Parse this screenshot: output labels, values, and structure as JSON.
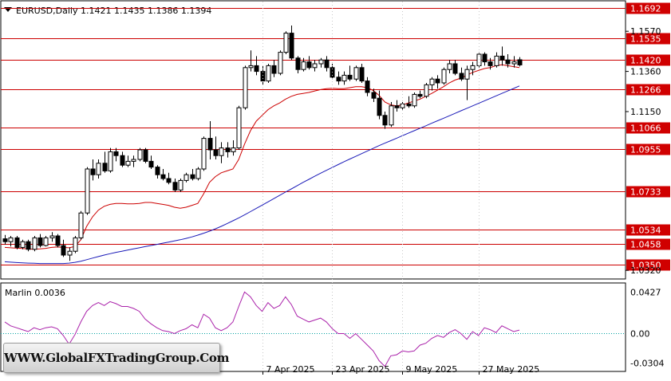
{
  "chart_data": [
    {
      "type": "candlestick",
      "symbol_header": "EURUSD,Daily  1.1421  1.1435  1.1386  1.1394",
      "ylim": [
        1.0275,
        1.1725
      ],
      "y_ticks": [
        "1.1570",
        "1.1360",
        "1.1150",
        "1.0320"
      ],
      "horizontal_levels": [
        {
          "value": 1.1692,
          "label": "1.1692"
        },
        {
          "value": 1.1535,
          "label": "1.1535"
        },
        {
          "value": 1.142,
          "label": "1.1420"
        },
        {
          "value": 1.1266,
          "label": "1.1266"
        },
        {
          "value": 1.1066,
          "label": "1.1066"
        },
        {
          "value": 1.0955,
          "label": "1.0955"
        },
        {
          "value": 1.0733,
          "label": "1.0733"
        },
        {
          "value": 1.0534,
          "label": "1.0534"
        },
        {
          "value": 1.0458,
          "label": "1.0458"
        },
        {
          "value": 1.035,
          "label": "1.0350"
        }
      ],
      "x_tick_labels": [
        {
          "label": "7 Apr 2025",
          "bar": 44
        },
        {
          "label": "23 Apr 2025",
          "bar": 56
        },
        {
          "label": "9 May 2025",
          "bar": 68
        },
        {
          "label": "27 May 2025",
          "bar": 81
        }
      ],
      "level_color": "#cc0000",
      "label_bg": "#d00000",
      "bull_color": "#ffffff",
      "bear_color": "#000000",
      "fast_ma_color": "#cc0000",
      "slow_ma_color": "#1a1ab8",
      "candles": [
        [
          1.0485,
          1.0505,
          1.0455,
          1.047
        ],
        [
          1.047,
          1.05,
          1.0445,
          1.049
        ],
        [
          1.049,
          1.05,
          1.043,
          1.044
        ],
        [
          1.044,
          1.048,
          1.043,
          1.047
        ],
        [
          1.047,
          1.048,
          1.042,
          1.043
        ],
        [
          1.043,
          1.05,
          1.042,
          1.049
        ],
        [
          1.049,
          1.051,
          1.044,
          1.045
        ],
        [
          1.045,
          1.05,
          1.0445,
          1.049
        ],
        [
          1.049,
          1.052,
          1.047,
          1.05
        ],
        [
          1.05,
          1.051,
          1.044,
          1.045
        ],
        [
          1.045,
          1.048,
          1.039,
          1.04
        ],
        [
          1.04,
          1.044,
          1.037,
          1.042
        ],
        [
          1.042,
          1.05,
          1.041,
          1.049
        ],
        [
          1.049,
          1.063,
          1.048,
          1.062
        ],
        [
          1.062,
          1.086,
          1.061,
          1.085
        ],
        [
          1.085,
          1.09,
          1.079,
          1.082
        ],
        [
          1.082,
          1.09,
          1.08,
          1.088
        ],
        [
          1.088,
          1.094,
          1.083,
          1.084
        ],
        [
          1.084,
          1.096,
          1.083,
          1.094
        ],
        [
          1.094,
          1.096,
          1.089,
          1.092
        ],
        [
          1.092,
          1.094,
          1.086,
          1.087
        ],
        [
          1.087,
          1.092,
          1.086,
          1.089
        ],
        [
          1.089,
          1.092,
          1.086,
          1.09
        ],
        [
          1.09,
          1.096,
          1.089,
          1.095
        ],
        [
          1.095,
          1.096,
          1.088,
          1.089
        ],
        [
          1.089,
          1.092,
          1.085,
          1.086
        ],
        [
          1.086,
          1.087,
          1.08,
          1.082
        ],
        [
          1.082,
          1.085,
          1.079,
          1.08
        ],
        [
          1.08,
          1.083,
          1.077,
          1.078
        ],
        [
          1.078,
          1.08,
          1.073,
          1.074
        ],
        [
          1.074,
          1.08,
          1.073,
          1.079
        ],
        [
          1.079,
          1.083,
          1.078,
          1.082
        ],
        [
          1.082,
          1.085,
          1.079,
          1.08
        ],
        [
          1.08,
          1.086,
          1.079,
          1.085
        ],
        [
          1.085,
          1.102,
          1.084,
          1.101
        ],
        [
          1.101,
          1.11,
          1.09,
          1.095
        ],
        [
          1.095,
          1.102,
          1.09,
          1.092
        ],
        [
          1.092,
          1.099,
          1.088,
          1.096
        ],
        [
          1.096,
          1.099,
          1.091,
          1.094
        ],
        [
          1.094,
          1.1,
          1.092,
          1.096
        ],
        [
          1.096,
          1.118,
          1.095,
          1.117
        ],
        [
          1.117,
          1.139,
          1.116,
          1.138
        ],
        [
          1.138,
          1.147,
          1.136,
          1.139
        ],
        [
          1.139,
          1.144,
          1.134,
          1.136
        ],
        [
          1.136,
          1.139,
          1.129,
          1.131
        ],
        [
          1.131,
          1.14,
          1.13,
          1.139
        ],
        [
          1.139,
          1.142,
          1.133,
          1.135
        ],
        [
          1.135,
          1.147,
          1.134,
          1.146
        ],
        [
          1.146,
          1.157,
          1.145,
          1.156
        ],
        [
          1.156,
          1.16,
          1.142,
          1.143
        ],
        [
          1.143,
          1.144,
          1.135,
          1.137
        ],
        [
          1.137,
          1.143,
          1.136,
          1.141
        ],
        [
          1.141,
          1.144,
          1.137,
          1.138
        ],
        [
          1.138,
          1.142,
          1.136,
          1.14
        ],
        [
          1.14,
          1.143,
          1.138,
          1.142
        ],
        [
          1.142,
          1.144,
          1.136,
          1.138
        ],
        [
          1.138,
          1.14,
          1.132,
          1.133
        ],
        [
          1.133,
          1.136,
          1.129,
          1.131
        ],
        [
          1.131,
          1.136,
          1.129,
          1.134
        ],
        [
          1.134,
          1.139,
          1.131,
          1.132
        ],
        [
          1.132,
          1.139,
          1.131,
          1.138
        ],
        [
          1.138,
          1.14,
          1.13,
          1.131
        ],
        [
          1.131,
          1.133,
          1.123,
          1.125
        ],
        [
          1.125,
          1.127,
          1.12,
          1.122
        ],
        [
          1.122,
          1.126,
          1.111,
          1.113
        ],
        [
          1.113,
          1.115,
          1.106,
          1.108
        ],
        [
          1.108,
          1.12,
          1.107,
          1.118
        ],
        [
          1.118,
          1.121,
          1.115,
          1.117
        ],
        [
          1.117,
          1.12,
          1.116,
          1.119
        ],
        [
          1.119,
          1.123,
          1.117,
          1.118
        ],
        [
          1.118,
          1.125,
          1.117,
          1.124
        ],
        [
          1.124,
          1.126,
          1.122,
          1.123
        ],
        [
          1.123,
          1.13,
          1.122,
          1.129
        ],
        [
          1.129,
          1.133,
          1.126,
          1.132
        ],
        [
          1.132,
          1.134,
          1.127,
          1.13
        ],
        [
          1.13,
          1.138,
          1.129,
          1.137
        ],
        [
          1.137,
          1.142,
          1.135,
          1.14
        ],
        [
          1.14,
          1.142,
          1.134,
          1.135
        ],
        [
          1.135,
          1.138,
          1.131,
          1.132
        ],
        [
          1.132,
          1.139,
          1.121,
          1.137
        ],
        [
          1.137,
          1.141,
          1.134,
          1.139
        ],
        [
          1.139,
          1.146,
          1.138,
          1.145
        ],
        [
          1.145,
          1.146,
          1.139,
          1.141
        ],
        [
          1.141,
          1.143,
          1.137,
          1.139
        ],
        [
          1.139,
          1.146,
          1.138,
          1.144
        ],
        [
          1.144,
          1.149,
          1.139,
          1.142
        ],
        [
          1.142,
          1.145,
          1.138,
          1.14
        ],
        [
          1.14,
          1.144,
          1.138,
          1.141
        ],
        [
          1.1421,
          1.1435,
          1.1386,
          1.1394
        ]
      ],
      "fast_ma": [
        1.044,
        1.0438,
        1.0436,
        1.0434,
        1.0432,
        1.043,
        1.0432,
        1.0435,
        1.044,
        1.0442,
        1.044,
        1.0438,
        1.0445,
        1.048,
        1.055,
        1.06,
        1.0635,
        1.0655,
        1.0665,
        1.067,
        1.067,
        1.0668,
        1.0668,
        1.067,
        1.0675,
        1.0675,
        1.067,
        1.0665,
        1.066,
        1.065,
        1.0645,
        1.065,
        1.066,
        1.067,
        1.072,
        1.078,
        1.081,
        1.083,
        1.084,
        1.085,
        1.09,
        1.098,
        1.105,
        1.11,
        1.113,
        1.116,
        1.118,
        1.1195,
        1.1215,
        1.123,
        1.124,
        1.1245,
        1.125,
        1.1258,
        1.1265,
        1.127,
        1.1272,
        1.127,
        1.127,
        1.1275,
        1.128,
        1.128,
        1.1275,
        1.126,
        1.1235,
        1.12,
        1.1185,
        1.118,
        1.1185,
        1.1195,
        1.1205,
        1.1215,
        1.123,
        1.1245,
        1.1262,
        1.128,
        1.13,
        1.1315,
        1.1325,
        1.134,
        1.1355,
        1.1365,
        1.1375,
        1.138,
        1.139,
        1.1395,
        1.139,
        1.1385,
        1.138
      ],
      "slow_ma": [
        1.0365,
        1.0363,
        1.0361,
        1.0359,
        1.0358,
        1.0357,
        1.0356,
        1.0356,
        1.0356,
        1.0356,
        1.0356,
        1.0358,
        1.0362,
        1.0368,
        1.0376,
        1.0384,
        1.0392,
        1.04,
        1.0407,
        1.0414,
        1.042,
        1.0426,
        1.0432,
        1.0438,
        1.0444,
        1.045,
        1.0456,
        1.0462,
        1.0468,
        1.0474,
        1.048,
        1.0487,
        1.0495,
        1.0504,
        1.0514,
        1.0525,
        1.0537,
        1.055,
        1.0564,
        1.0579,
        1.0594,
        1.061,
        1.0627,
        1.0644,
        1.0661,
        1.0678,
        1.0695,
        1.0712,
        1.0729,
        1.0746,
        1.0763,
        1.078,
        1.0796,
        1.0812,
        1.0828,
        1.0843,
        1.0858,
        1.0873,
        1.0888,
        1.0902,
        1.0916,
        1.093,
        1.0944,
        1.0958,
        1.0972,
        1.0985,
        1.0998,
        1.1011,
        1.1024,
        1.1037,
        1.105,
        1.1063,
        1.1076,
        1.1089,
        1.1102,
        1.1115,
        1.1128,
        1.1141,
        1.1154,
        1.1167,
        1.118,
        1.1193,
        1.1206,
        1.1219,
        1.1232,
        1.1245,
        1.1258,
        1.1271,
        1.1284
      ]
    },
    {
      "type": "line",
      "indicator_label": "Marlin 0.0036",
      "series_color": "#aa22aa",
      "y_ticks": [
        "0.0427",
        "0.00",
        "-0.0304"
      ],
      "ylim": [
        -0.0392,
        0.0515
      ],
      "zero_line_color": "#00a0a0",
      "values": [
        0.012,
        0.008,
        0.006,
        0.004,
        0.002,
        0.006,
        0.004,
        0.006,
        0.007,
        0.005,
        -0.002,
        -0.011,
        -0.001,
        0.012,
        0.023,
        0.029,
        0.032,
        0.029,
        0.033,
        0.031,
        0.028,
        0.028,
        0.026,
        0.023,
        0.015,
        0.01,
        0.006,
        0.003,
        0.002,
        0.0,
        0.003,
        0.005,
        0.009,
        0.006,
        0.02,
        0.016,
        0.006,
        0.003,
        0.006,
        0.012,
        0.028,
        0.043,
        0.038,
        0.029,
        0.023,
        0.032,
        0.026,
        0.029,
        0.038,
        0.03,
        0.018,
        0.015,
        0.012,
        0.014,
        0.016,
        0.012,
        0.005,
        0.0,
        0.0,
        -0.005,
        0.0,
        -0.006,
        -0.012,
        -0.018,
        -0.028,
        -0.034,
        -0.023,
        -0.022,
        -0.018,
        -0.019,
        -0.018,
        -0.012,
        -0.01,
        -0.005,
        -0.002,
        -0.004,
        0.001,
        0.004,
        0.0,
        -0.006,
        0.002,
        -0.002,
        0.006,
        0.004,
        0.001,
        0.008,
        0.005,
        0.002,
        0.0036
      ]
    }
  ],
  "watermark": "WWW.GlobalFXTradingGroup.Com"
}
